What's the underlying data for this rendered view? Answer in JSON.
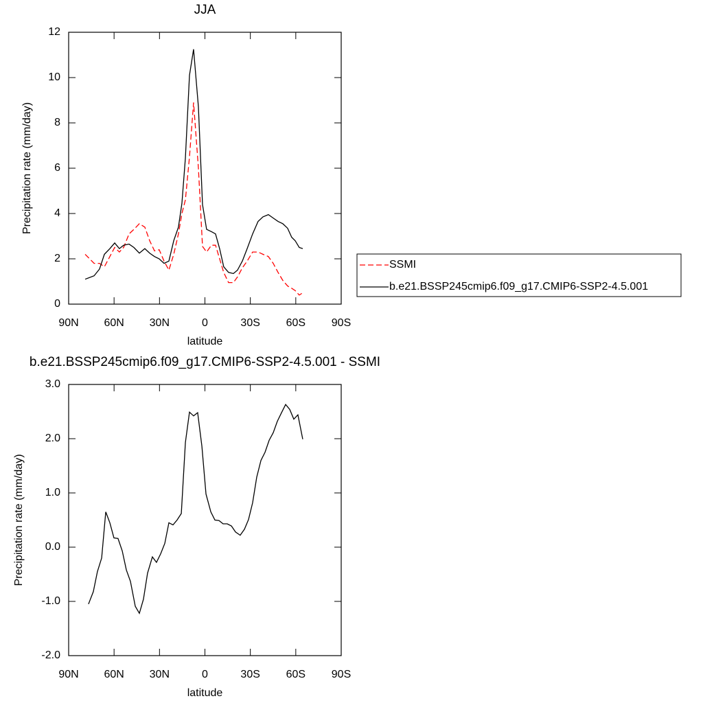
{
  "chart_data": [
    {
      "type": "line",
      "title": "JJA",
      "xlabel": "latitude",
      "ylabel": "Precipitation rate (mm/day)",
      "x": [
        79.1,
        73.2,
        69.6,
        66.4,
        62.8,
        59.6,
        56.5,
        53.7,
        50.1,
        46.9,
        43.3,
        39.7,
        36.5,
        33.3,
        30.2,
        27.0,
        23.8,
        20.6,
        17.5,
        15.2,
        12.9,
        10.2,
        7.5,
        4.3,
        1.6,
        -1.1,
        -4.3,
        -7.0,
        -9.7,
        -12.4,
        -15.6,
        -18.8,
        -21.5,
        -24.7,
        -27.9,
        -31.5,
        -35.1,
        -38.3,
        -41.9,
        -45.1,
        -48.3,
        -51.4,
        -54.6,
        -57.3,
        -59.6,
        -62.3,
        -64.6
      ],
      "series": [
        {
          "name": "SSMI",
          "color": "#ff0000",
          "line_style": "dashed",
          "values": [
            2.2,
            1.8,
            1.8,
            1.65,
            2.1,
            2.5,
            2.3,
            2.5,
            3.1,
            3.3,
            3.55,
            3.4,
            2.8,
            2.35,
            2.4,
            1.9,
            1.5,
            2.2,
            3.1,
            4.0,
            4.6,
            6.5,
            8.9,
            6.0,
            2.55,
            2.3,
            2.6,
            2.6,
            2.0,
            1.4,
            0.95,
            0.95,
            1.2,
            1.6,
            1.9,
            2.3,
            2.3,
            2.2,
            2.1,
            1.8,
            1.4,
            1.05,
            0.8,
            0.7,
            0.6,
            0.4,
            0.5
          ]
        },
        {
          "name": "b.e21.BSSP245cmip6.f09_g17.CMIP6-SSP2-4.5.001",
          "color": "#000000",
          "line_style": "solid",
          "values": [
            1.1,
            1.25,
            1.55,
            2.2,
            2.45,
            2.7,
            2.45,
            2.6,
            2.65,
            2.5,
            2.25,
            2.45,
            2.25,
            2.1,
            2.0,
            1.8,
            1.9,
            2.8,
            3.4,
            4.45,
            6.45,
            10.1,
            11.25,
            8.7,
            4.4,
            3.3,
            3.2,
            3.1,
            2.45,
            1.65,
            1.4,
            1.35,
            1.5,
            1.9,
            2.45,
            3.1,
            3.65,
            3.85,
            3.95,
            3.8,
            3.65,
            3.55,
            3.35,
            2.95,
            2.8,
            2.5,
            2.45
          ]
        }
      ],
      "xlim": [
        90,
        -90
      ],
      "xticks": [
        {
          "value": 90,
          "label": "90N"
        },
        {
          "value": 60,
          "label": "60N"
        },
        {
          "value": 30,
          "label": "30N"
        },
        0,
        {
          "value": -30,
          "label": "30S"
        },
        {
          "value": -60,
          "label": "60S"
        },
        {
          "value": -90,
          "label": "90S"
        }
      ],
      "ylim": [
        0,
        12
      ],
      "yticks": [
        0,
        2,
        4,
        6,
        8,
        10,
        12
      ],
      "legend": "right"
    },
    {
      "type": "line",
      "title": "b.e21.BSSP245cmip6.f09_g17.CMIP6-SSP2-4.5.001 - SSMI",
      "xlabel": "latitude",
      "ylabel": "Precipitation rate (mm/day)",
      "x": [
        76.9,
        73.7,
        71.0,
        68.2,
        65.5,
        62.8,
        60.1,
        57.4,
        54.6,
        51.9,
        49.2,
        46.0,
        43.3,
        40.6,
        37.9,
        34.7,
        32.0,
        29.2,
        26.5,
        23.8,
        21.1,
        18.4,
        15.6,
        12.9,
        10.2,
        7.5,
        4.8,
        2.0,
        -0.7,
        -3.9,
        -6.6,
        -9.3,
        -12.0,
        -14.7,
        -17.5,
        -20.2,
        -23.3,
        -26.1,
        -28.8,
        -31.5,
        -34.2,
        -37.0,
        -39.7,
        -42.4,
        -45.1,
        -47.8,
        -50.6,
        -53.3,
        -56.0,
        -58.7,
        -61.4,
        -64.6
      ],
      "series": [
        {
          "color": "#000000",
          "line_style": "solid",
          "values": [
            -1.05,
            -0.82,
            -0.45,
            -0.2,
            0.65,
            0.45,
            0.17,
            0.16,
            -0.07,
            -0.42,
            -0.63,
            -1.09,
            -1.22,
            -0.96,
            -0.48,
            -0.18,
            -0.28,
            -0.12,
            0.07,
            0.45,
            0.41,
            0.5,
            0.62,
            1.93,
            2.49,
            2.42,
            2.48,
            1.86,
            0.98,
            0.65,
            0.5,
            0.49,
            0.43,
            0.43,
            0.39,
            0.28,
            0.22,
            0.33,
            0.51,
            0.82,
            1.29,
            1.6,
            1.75,
            1.97,
            2.11,
            2.32,
            2.48,
            2.63,
            2.54,
            2.36,
            2.44,
            1.99
          ]
        }
      ],
      "xlim": [
        90,
        -90
      ],
      "xticks": [
        {
          "value": 90,
          "label": "90N"
        },
        {
          "value": 60,
          "label": "60N"
        },
        {
          "value": 30,
          "label": "30N"
        },
        0,
        {
          "value": -30,
          "label": "30S"
        },
        {
          "value": -60,
          "label": "60S"
        },
        {
          "value": -90,
          "label": "90S"
        }
      ],
      "ylim": [
        -2,
        3
      ],
      "yticks": [
        {
          "value": -2,
          "label": "-2.0"
        },
        {
          "value": -1,
          "label": "-1.0"
        },
        {
          "value": 0,
          "label": "0.0"
        },
        {
          "value": 1,
          "label": "1.0"
        },
        {
          "value": 2,
          "label": "2.0"
        },
        {
          "value": 3,
          "label": "3.0"
        }
      ]
    }
  ]
}
